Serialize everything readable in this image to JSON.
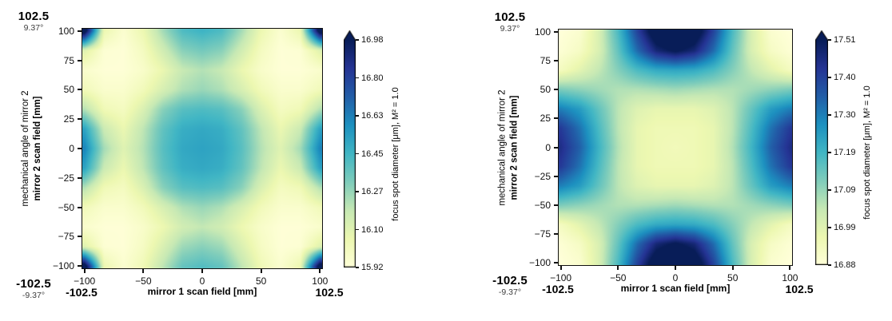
{
  "page": {
    "background": "#ffffff"
  },
  "colormap": {
    "name": "YlGnBu",
    "stops": [
      [
        0,
        "#ffffd9"
      ],
      [
        0.125,
        "#edf8b1"
      ],
      [
        0.25,
        "#c7e9b4"
      ],
      [
        0.375,
        "#7fcdbb"
      ],
      [
        0.5,
        "#41b6c4"
      ],
      [
        0.625,
        "#1d91c0"
      ],
      [
        0.75,
        "#225ea8"
      ],
      [
        0.875,
        "#253494"
      ],
      [
        1,
        "#081d58"
      ]
    ],
    "over": "#081d58"
  },
  "chart_data": [
    {
      "type": "heatmap",
      "colormap": "YlGnBu",
      "xlabel": "mirror 1 scan field [mm]",
      "ylabel_line1": "mechanical angle of mirror 2",
      "ylabel_line2": "mirror 2 scan field [mm]",
      "xlim": [
        -102.5,
        102.5
      ],
      "ylim": [
        -102.5,
        102.5
      ],
      "x_ticks": [
        -100,
        -50,
        0,
        50,
        100
      ],
      "x_tick_labels": [
        "−100",
        "−50",
        "0",
        "50",
        "100"
      ],
      "y_ticks": [
        100,
        75,
        50,
        25,
        0,
        -25,
        -50,
        -75,
        -100
      ],
      "y_tick_labels": [
        "100",
        "75",
        "50",
        "25",
        "0",
        "−25",
        "−50",
        "−75",
        "−100"
      ],
      "annotations": {
        "top_left_field": "102.5",
        "top_left_angle": "9.37°",
        "bottom_left_field": "-102.5",
        "bottom_left_angle": "-9.37°",
        "x_extent_min": "-102.5",
        "x_extent_max": "102.5"
      },
      "colorbar": {
        "label": "focus spot diameter [μm], M² = 1.0",
        "vmin": 15.92,
        "vmax": 16.98,
        "extend": "max",
        "tick_labels": [
          "16.98",
          "16.80",
          "16.63",
          "16.45",
          "16.27",
          "16.10",
          "15.92"
        ]
      },
      "x": [
        -100,
        -83.3,
        -66.7,
        -50,
        -33.3,
        -16.7,
        0,
        16.7,
        33.3,
        50,
        66.7,
        83.3,
        100
      ],
      "y": [
        100,
        83.3,
        66.7,
        50,
        33.3,
        16.7,
        0,
        -16.7,
        -33.3,
        -50,
        -66.7,
        -83.3,
        -100
      ],
      "values": [
        [
          17.1,
          16.05,
          15.95,
          16.05,
          16.25,
          16.42,
          16.46,
          16.42,
          16.25,
          16.05,
          15.95,
          16.05,
          17.1
        ],
        [
          16.1,
          15.94,
          15.93,
          16.0,
          16.15,
          16.3,
          16.34,
          16.3,
          16.15,
          16.0,
          15.93,
          15.94,
          16.1
        ],
        [
          15.96,
          15.93,
          15.93,
          15.97,
          16.06,
          16.18,
          16.22,
          16.18,
          16.06,
          15.97,
          15.93,
          15.93,
          15.96
        ],
        [
          16.02,
          15.96,
          15.96,
          16.02,
          16.13,
          16.23,
          16.27,
          16.23,
          16.13,
          16.02,
          15.96,
          15.96,
          16.02
        ],
        [
          16.22,
          16.03,
          16.0,
          16.12,
          16.3,
          16.4,
          16.42,
          16.4,
          16.3,
          16.12,
          16.0,
          16.03,
          16.22
        ],
        [
          16.52,
          16.17,
          16.06,
          16.2,
          16.38,
          16.48,
          16.5,
          16.48,
          16.38,
          16.2,
          16.06,
          16.17,
          16.52
        ],
        [
          16.62,
          16.25,
          16.1,
          16.22,
          16.4,
          16.5,
          16.52,
          16.5,
          16.4,
          16.22,
          16.1,
          16.25,
          16.62
        ],
        [
          16.52,
          16.17,
          16.06,
          16.2,
          16.38,
          16.48,
          16.5,
          16.48,
          16.38,
          16.2,
          16.06,
          16.17,
          16.52
        ],
        [
          16.22,
          16.03,
          16.0,
          16.12,
          16.3,
          16.4,
          16.42,
          16.4,
          16.3,
          16.12,
          16.0,
          16.03,
          16.22
        ],
        [
          16.02,
          15.96,
          15.96,
          16.02,
          16.13,
          16.23,
          16.27,
          16.23,
          16.13,
          16.02,
          15.96,
          15.96,
          16.02
        ],
        [
          15.96,
          15.93,
          15.93,
          15.97,
          16.05,
          16.15,
          16.19,
          16.15,
          16.05,
          15.97,
          15.93,
          15.93,
          15.96
        ],
        [
          16.1,
          15.94,
          15.93,
          15.99,
          16.12,
          16.26,
          16.3,
          16.26,
          16.12,
          15.99,
          15.93,
          15.94,
          16.1
        ],
        [
          17.1,
          16.05,
          15.95,
          16.03,
          16.2,
          16.37,
          16.41,
          16.37,
          16.2,
          16.03,
          15.95,
          16.05,
          17.1
        ]
      ]
    },
    {
      "type": "heatmap",
      "colormap": "YlGnBu",
      "xlabel": "mirror 1 scan field [mm]",
      "ylabel_line1": "mechanical angle of mirror 2",
      "ylabel_line2": "mirror 2 scan field [mm]",
      "xlim": [
        -102.5,
        102.5
      ],
      "ylim": [
        -102.5,
        102.5
      ],
      "x_ticks": [
        -100,
        -50,
        0,
        50,
        100
      ],
      "x_tick_labels": [
        "−100",
        "−50",
        "0",
        "50",
        "100"
      ],
      "y_ticks": [
        100,
        75,
        50,
        25,
        0,
        -25,
        -50,
        -75,
        -100
      ],
      "y_tick_labels": [
        "100",
        "75",
        "50",
        "25",
        "0",
        "−25",
        "−50",
        "−75",
        "−100"
      ],
      "annotations": {
        "top_left_field": "102.5",
        "top_left_angle": "9.37°",
        "bottom_left_field": "-102.5",
        "bottom_left_angle": "-9.37°",
        "x_extent_min": "-102.5",
        "x_extent_max": "102.5"
      },
      "colorbar": {
        "label": "focus spot diameter [μm], M² = 1.0",
        "vmin": 16.88,
        "vmax": 17.51,
        "extend": "max",
        "tick_labels": [
          "17.51",
          "17.40",
          "17.30",
          "17.19",
          "17.09",
          "16.99",
          "16.88"
        ]
      },
      "x": [
        -100,
        -83.3,
        -66.7,
        -50,
        -33.3,
        -16.7,
        0,
        16.7,
        33.3,
        50,
        66.7,
        83.3,
        100
      ],
      "y": [
        100,
        83.3,
        66.7,
        50,
        33.3,
        16.7,
        0,
        -16.7,
        -33.3,
        -50,
        -66.7,
        -83.3,
        -100
      ],
      "values": [
        [
          16.88,
          16.9,
          17.0,
          17.18,
          17.4,
          17.58,
          17.65,
          17.58,
          17.4,
          17.18,
          17.0,
          16.9,
          16.88
        ],
        [
          16.89,
          16.92,
          17.0,
          17.15,
          17.33,
          17.47,
          17.52,
          17.47,
          17.33,
          17.15,
          17.0,
          16.92,
          16.89
        ],
        [
          16.93,
          16.98,
          17.04,
          17.11,
          17.18,
          17.22,
          17.23,
          17.22,
          17.18,
          17.11,
          17.04,
          16.98,
          16.93
        ],
        [
          17.12,
          17.1,
          17.08,
          17.06,
          17.06,
          17.07,
          17.08,
          17.07,
          17.06,
          17.06,
          17.08,
          17.1,
          17.12
        ],
        [
          17.3,
          17.25,
          17.15,
          17.05,
          16.99,
          16.97,
          16.97,
          16.97,
          16.99,
          17.05,
          17.15,
          17.25,
          17.3
        ],
        [
          17.42,
          17.32,
          17.18,
          17.05,
          16.97,
          16.95,
          16.95,
          16.95,
          16.97,
          17.05,
          17.18,
          17.32,
          17.42
        ],
        [
          17.45,
          17.35,
          17.2,
          17.06,
          16.97,
          16.95,
          16.94,
          16.95,
          16.97,
          17.06,
          17.2,
          17.35,
          17.45
        ],
        [
          17.42,
          17.32,
          17.18,
          17.05,
          16.97,
          16.95,
          16.95,
          16.95,
          16.97,
          17.05,
          17.18,
          17.32,
          17.42
        ],
        [
          17.3,
          17.25,
          17.15,
          17.05,
          16.99,
          16.97,
          16.97,
          16.97,
          16.99,
          17.05,
          17.15,
          17.25,
          17.3
        ],
        [
          17.12,
          17.1,
          17.08,
          17.06,
          17.06,
          17.07,
          17.08,
          17.07,
          17.06,
          17.06,
          17.08,
          17.1,
          17.12
        ],
        [
          16.93,
          16.98,
          17.04,
          17.11,
          17.18,
          17.22,
          17.23,
          17.22,
          17.18,
          17.11,
          17.04,
          16.98,
          16.93
        ],
        [
          16.89,
          16.92,
          17.0,
          17.15,
          17.33,
          17.47,
          17.52,
          17.47,
          17.33,
          17.15,
          17.0,
          16.92,
          16.89
        ],
        [
          16.88,
          16.9,
          17.0,
          17.18,
          17.4,
          17.58,
          17.65,
          17.58,
          17.4,
          17.18,
          17.0,
          16.9,
          16.88
        ]
      ]
    }
  ]
}
